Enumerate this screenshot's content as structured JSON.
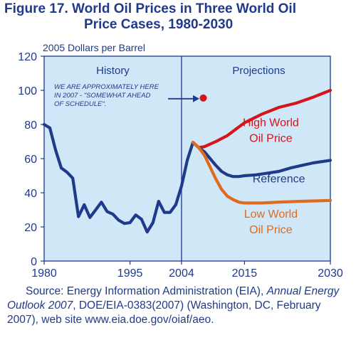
{
  "chart_data": {
    "type": "line",
    "title_line1": "Figure 17.  World Oil Prices in Three World Oil",
    "title_line2": "Price Cases, 1980-2030",
    "ylabel": "2005 Dollars per Barrel",
    "xlim": [
      1980,
      2030
    ],
    "ylim": [
      0,
      120
    ],
    "y_ticks": [
      0,
      20,
      40,
      60,
      80,
      100,
      120
    ],
    "x_ticks": [
      1980,
      1995,
      2004,
      2015,
      2030
    ],
    "grid": false,
    "divider_year": 2004,
    "region_labels": {
      "left": "History",
      "right": "Projections"
    },
    "annotation": {
      "lines": [
        "WE ARE APPROXIMATELY HERE",
        "IN 2007 - \"SOMEWHAT AHEAD",
        "OF SCHEDULE\"."
      ],
      "marker": {
        "x": 2007.8,
        "y": 95.5
      },
      "color": "#d6141c"
    },
    "series": [
      {
        "name": "History",
        "color": "#1f3a8a",
        "x": [
          1980,
          1981,
          1982,
          1983,
          1984,
          1985,
          1986,
          1987,
          1988,
          1989,
          1990,
          1991,
          1992,
          1993,
          1994,
          1995,
          1996,
          1997,
          1998,
          1999,
          2000,
          2001,
          2002,
          2003,
          2004,
          2005,
          2006
        ],
        "y": [
          80,
          78,
          65,
          54.5,
          52,
          48.5,
          26,
          33,
          25.5,
          30,
          34.5,
          29,
          27.5,
          24,
          22,
          22.5,
          27,
          24.5,
          17,
          22.5,
          35,
          28.5,
          28.5,
          33,
          44,
          59,
          69.5
        ]
      },
      {
        "name": "High World Oil Price",
        "label_lines": [
          "High World",
          "Oil Price"
        ],
        "color": "#d6141c",
        "x": [
          2006,
          2007,
          2008,
          2010,
          2012,
          2015,
          2018,
          2021,
          2024,
          2027,
          2030
        ],
        "y": [
          69.5,
          66.5,
          67,
          70,
          73.5,
          81,
          86,
          90,
          92.5,
          96,
          100
        ]
      },
      {
        "name": "Reference",
        "label_lines": [
          "Reference"
        ],
        "color": "#1f3a8a",
        "x": [
          2006,
          2007,
          2008,
          2009,
          2010,
          2011,
          2012,
          2013,
          2014,
          2015,
          2017,
          2019,
          2021,
          2023,
          2025,
          2027,
          2030
        ],
        "y": [
          69.5,
          66.5,
          64,
          60,
          56,
          52.5,
          50.5,
          49.5,
          49.5,
          50,
          50.5,
          51.5,
          52.5,
          54.5,
          56,
          57.5,
          59
        ]
      },
      {
        "name": "Low World Oil Price",
        "label_lines": [
          "Low World",
          "Oil Price"
        ],
        "color": "#e06a1b",
        "x": [
          2006,
          2007,
          2008,
          2009,
          2010,
          2011,
          2012,
          2013,
          2014,
          2015,
          2018,
          2021,
          2025,
          2030
        ],
        "y": [
          69.5,
          66.5,
          62,
          55,
          48,
          42,
          38,
          36,
          34.5,
          34,
          34,
          34.5,
          35,
          35.5
        ]
      }
    ],
    "colors": {
      "plot_bg": "#cfe7f7",
      "axis": "#1f3a8a",
      "text": "#1f3a8a"
    }
  },
  "source": {
    "prefix": "Source: Energy Information Administration (EIA), ",
    "title": "Annual Energy Outlook 2007",
    "suffix": ", DOE/EIA-0383(2007) (Washington, DC, February 2007), web site www.eia.doe.gov/oiaf/aeo."
  }
}
